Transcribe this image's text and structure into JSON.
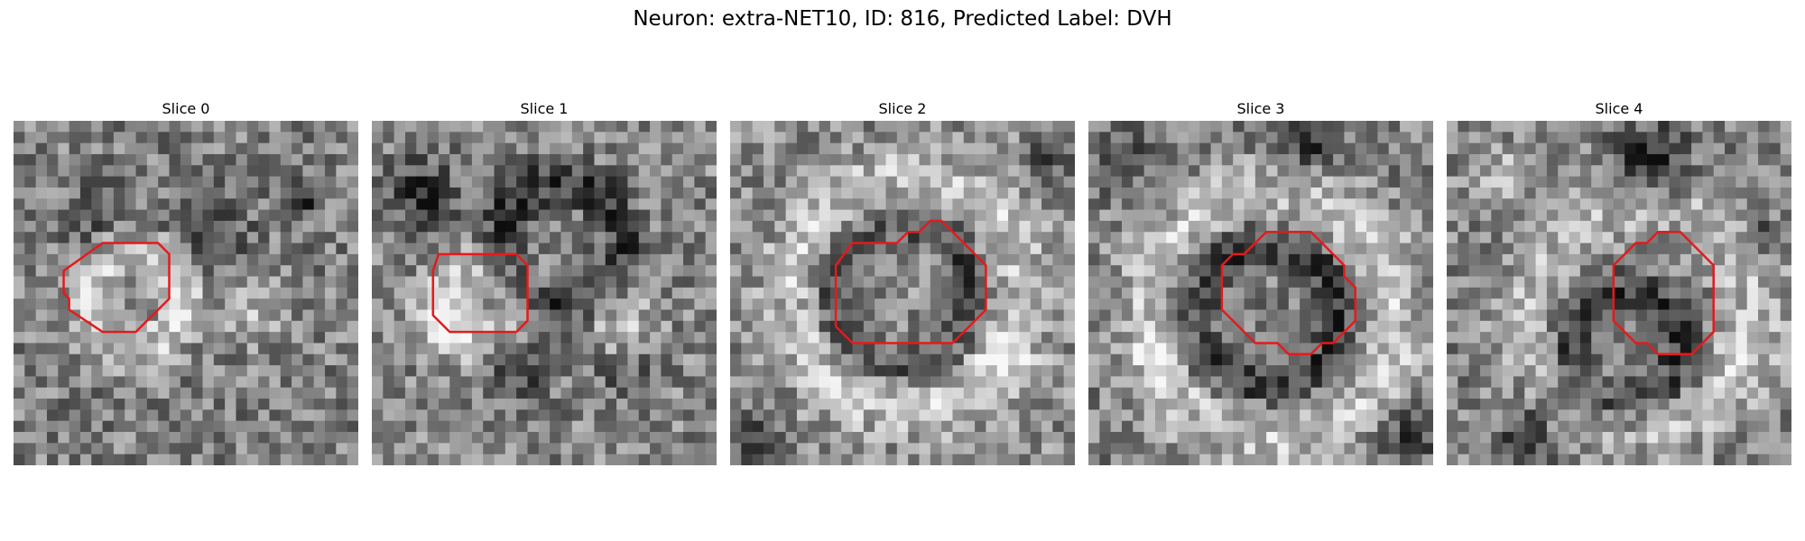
{
  "figure": {
    "title": "Neuron: extra-NET10, ID: 816, Predicted Label: DVH",
    "outline_color": "#e41a1c",
    "colormap": "gray",
    "panels": [
      {
        "label": "Slice 0"
      },
      {
        "label": "Slice 1"
      },
      {
        "label": "Slice 2"
      },
      {
        "label": "Slice 3"
      },
      {
        "label": "Slice 4"
      }
    ]
  }
}
